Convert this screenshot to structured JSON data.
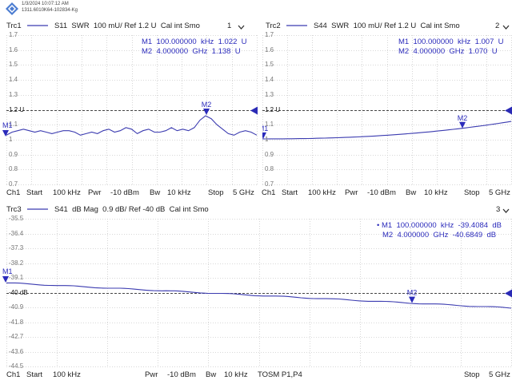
{
  "header": {
    "datetime": "1/3/2024 10:07:12 AM",
    "instrument": "1311.6010K64-102834-Kg"
  },
  "traces": [
    {
      "id": "trc1",
      "trace": "Trc1",
      "param": "S11",
      "format": "SWR",
      "scale": "100 mU/ Ref 1.2 U",
      "cal": "Cal int Smo",
      "window": "1",
      "y_ticks": [
        "1.7",
        "1.6",
        "1.5",
        "1.4",
        "1.3",
        "1.2 U",
        "1.1",
        "1",
        "0.9",
        "0.8",
        "0.7"
      ],
      "ref_value": "1.2 U",
      "markers": [
        {
          "name": "M1",
          "stim": "100.000000",
          "unit": "kHz",
          "value": "1.022",
          "vunit": "U"
        },
        {
          "name": "M2",
          "stim": "4.000000",
          "unit": "GHz",
          "value": "1.138",
          "vunit": "U"
        }
      ],
      "footer": {
        "ch": "Ch1",
        "start_label": "Start",
        "start": "100 kHz",
        "pwr_label": "Pwr",
        "pwr": "-10 dBm",
        "bw_label": "Bw",
        "bw": "10 kHz",
        "stop_label": "Stop",
        "stop": "5 GHz"
      },
      "curve": "1.03,1.05,1.06,1.07,1.06,1.05,1.06,1.05,1.04,1.05,1.06,1.06,1.05,1.03,1.04,1.05,1.04,1.06,1.07,1.05,1.06,1.08,1.07,1.04,1.06,1.07,1.05,1.05,1.06,1.08,1.06,1.07,1.06,1.08,1.13,1.16,1.14,1.10,1.07,1.04,1.03,1.05,1.06,1.05,1.03"
    },
    {
      "id": "trc2",
      "trace": "Trc2",
      "param": "S44",
      "format": "SWR",
      "scale": "100 mU/ Ref 1.2 U",
      "cal": "Cal int Smo",
      "window": "2",
      "y_ticks": [
        "1.7",
        "1.6",
        "1.5",
        "1.4",
        "1.3",
        "1.2 U",
        "1.1",
        "1",
        "0.9",
        "0.8",
        "0.7"
      ],
      "ref_value": "1.2 U",
      "markers": [
        {
          "name": "M1",
          "stim": "100.000000",
          "unit": "kHz",
          "value": "1.007",
          "vunit": "U"
        },
        {
          "name": "M2",
          "stim": "4.000000",
          "unit": "GHz",
          "value": "1.070",
          "vunit": "U"
        }
      ],
      "footer": {
        "ch": "Ch1",
        "start_label": "Start",
        "start": "100 kHz",
        "pwr_label": "Pwr",
        "pwr": "-10 dBm",
        "bw_label": "Bw",
        "bw": "10 kHz",
        "stop_label": "Stop",
        "stop": "5 GHz"
      }
    },
    {
      "id": "trc3",
      "trace": "Trc3",
      "param": "S41",
      "format": "dB Mag",
      "scale": "0.9 dB/ Ref -40 dB",
      "cal": "Cal int Smo",
      "window": "3",
      "y_ticks": [
        "-35.5",
        "-36.4",
        "-37.3",
        "-38.2",
        "-39.1",
        "-40 dB",
        "-40.9",
        "-41.8",
        "-42.7",
        "-43.6",
        "-44.5"
      ],
      "ref_value": "-40 dB",
      "markers": [
        {
          "name": "M1",
          "stim": "100.000000",
          "unit": "kHz",
          "value": "-39.4084",
          "vunit": "dB"
        },
        {
          "name": "M2",
          "stim": "4.000000",
          "unit": "GHz",
          "value": "-40.6849",
          "vunit": "dB"
        }
      ],
      "footer": {
        "ch": "Ch1",
        "start_label": "Start",
        "start": "100 kHz",
        "pwr_label": "Pwr",
        "pwr": "-10 dBm",
        "bw_label": "Bw",
        "bw": "10 kHz",
        "tosm": "TOSM P1,P4",
        "stop_label": "Stop",
        "stop": "5 GHz"
      }
    }
  ],
  "colors": {
    "trace": "#3b3bb0",
    "marker": "#2b2bbb",
    "ref_arrow": "#2a2ab5",
    "grid": "#cccccc",
    "logo": "#4c7dd1"
  }
}
